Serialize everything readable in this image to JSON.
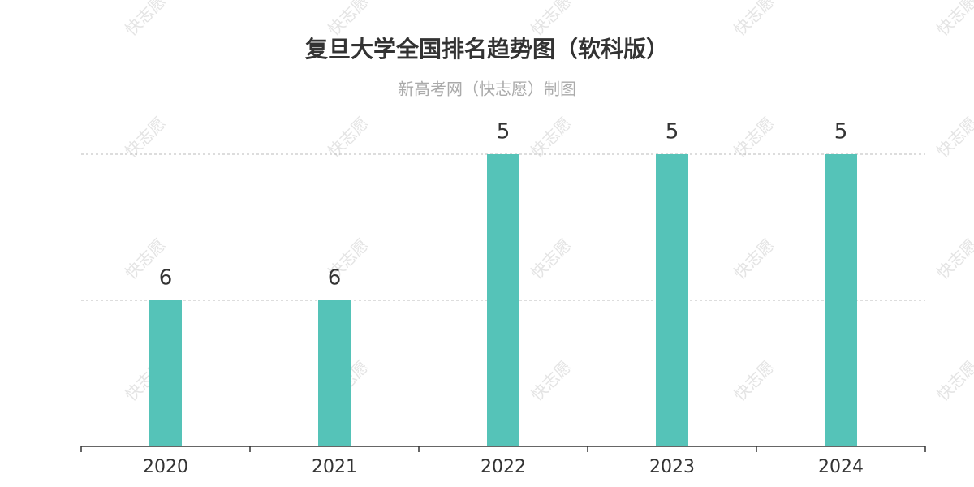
{
  "chart_data": {
    "type": "bar",
    "title": "复旦大学全国排名趋势图（软科版）",
    "subtitle": "新高考网（快志愿）制图",
    "watermark": "快志愿",
    "categories": [
      "2020",
      "2021",
      "2022",
      "2023",
      "2024"
    ],
    "values": [
      6,
      6,
      5,
      5,
      5
    ],
    "color": "#55c3b8",
    "ylim": [
      7,
      5
    ],
    "yticks": [
      6,
      5
    ],
    "grid": true
  }
}
